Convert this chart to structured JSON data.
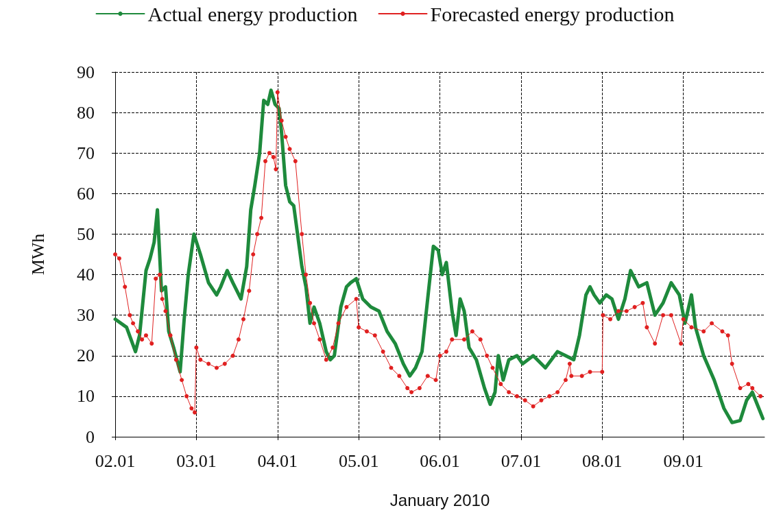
{
  "chart_data": {
    "type": "line",
    "xlabel": "January 2010",
    "ylabel": "MWh",
    "xlim": [
      "2010-01-02",
      "2010-01-10"
    ],
    "xticks": [
      {
        "value": "2010-01-02",
        "label": "02.01"
      },
      {
        "value": "2010-01-03",
        "label": "03.01"
      },
      {
        "value": "2010-01-04",
        "label": "04.01"
      },
      {
        "value": "2010-01-05",
        "label": "05.01"
      },
      {
        "value": "2010-01-06",
        "label": "06.01"
      },
      {
        "value": "2010-01-07",
        "label": "07.01"
      },
      {
        "value": "2010-01-08",
        "label": "08.01"
      },
      {
        "value": "2010-01-09",
        "label": "09.01"
      }
    ],
    "ylim": [
      0,
      90
    ],
    "yticks": [
      0,
      10,
      20,
      30,
      40,
      50,
      60,
      70,
      80,
      90
    ],
    "grid": true,
    "legend": "top",
    "line_style": "solid",
    "series": [
      {
        "name": "Actual energy production",
        "color": "#1e8a3c",
        "marker": "none",
        "x": [
          "2010-01-02T00:00",
          "2010-01-02T03:22",
          "2010-01-02T06:00",
          "2010-01-02T07:12",
          "2010-01-02T09:07",
          "2010-01-02T10:19",
          "2010-01-02T11:31",
          "2010-01-02T12:29",
          "2010-01-02T13:41",
          "2010-01-02T14:53",
          "2010-01-02T15:50",
          "2010-01-02T17:17",
          "2010-01-02T19:12",
          "2010-01-02T20:24",
          "2010-01-02T21:36",
          "2010-01-02T23:17",
          "2010-01-03T01:12",
          "2010-01-03T03:36",
          "2010-01-03T06:00",
          "2010-01-03T07:12",
          "2010-01-03T09:07",
          "2010-01-03T10:48",
          "2010-01-03T13:12",
          "2010-01-03T14:53",
          "2010-01-03T16:05",
          "2010-01-03T17:17",
          "2010-01-03T18:43",
          "2010-01-03T19:55",
          "2010-01-03T21:07",
          "2010-01-03T22:05",
          "2010-01-03T23:17",
          "2010-01-04T00:29",
          "2010-01-04T01:12",
          "2010-01-04T02:24",
          "2010-01-04T03:36",
          "2010-01-04T04:48",
          "2010-01-04T07:12",
          "2010-01-04T08:24",
          "2010-01-04T09:36",
          "2010-01-04T10:48",
          "2010-01-04T12:29",
          "2010-01-04T14:24",
          "2010-01-04T15:36",
          "2010-01-04T16:48",
          "2010-01-04T18:43",
          "2010-01-04T20:24",
          "2010-01-04T21:36",
          "2010-01-04T23:17",
          "2010-01-05T01:12",
          "2010-01-05T03:36",
          "2010-01-05T06:00",
          "2010-01-05T08:24",
          "2010-01-05T10:48",
          "2010-01-05T13:12",
          "2010-01-05T15:07",
          "2010-01-05T16:48",
          "2010-01-05T18:43",
          "2010-01-05T20:24",
          "2010-01-05T22:05",
          "2010-01-05T23:31",
          "2010-01-06T00:43",
          "2010-01-06T01:55",
          "2010-01-06T03:36",
          "2010-01-06T04:48",
          "2010-01-06T06:00",
          "2010-01-06T07:12",
          "2010-01-06T08:38",
          "2010-01-06T10:48",
          "2010-01-06T13:12",
          "2010-01-06T14:53",
          "2010-01-06T16:19",
          "2010-01-06T17:17",
          "2010-01-06T18:43",
          "2010-01-06T20:24",
          "2010-01-06T22:48",
          "2010-01-07T00:29",
          "2010-01-07T03:36",
          "2010-01-07T07:12",
          "2010-01-07T10:48",
          "2010-01-07T13:12",
          "2010-01-07T15:36",
          "2010-01-07T17:17",
          "2010-01-07T19:12",
          "2010-01-07T20:24",
          "2010-01-07T21:36",
          "2010-01-07T23:17",
          "2010-01-08T01:12",
          "2010-01-08T02:53",
          "2010-01-08T04:48",
          "2010-01-08T06:43",
          "2010-01-08T08:24",
          "2010-01-08T10:48",
          "2010-01-08T13:12",
          "2010-01-08T15:36",
          "2010-01-08T18:00",
          "2010-01-08T20:24",
          "2010-01-08T22:48",
          "2010-01-09T00:29",
          "2010-01-09T02:24",
          "2010-01-09T03:36",
          "2010-01-09T06:00",
          "2010-01-09T09:07",
          "2010-01-09T12:00",
          "2010-01-09T14:24",
          "2010-01-09T16:48",
          "2010-01-09T18:43",
          "2010-01-09T20:24",
          "2010-01-09T22:48",
          "2010-01-09T23:31"
        ],
        "values": [
          29,
          27,
          21,
          25,
          41,
          44,
          48,
          56,
          36,
          37,
          26,
          22,
          16,
          29,
          40,
          50,
          45,
          38,
          35,
          37,
          41,
          38,
          34,
          42,
          56,
          62,
          70,
          83,
          82,
          85.5,
          82,
          81,
          75,
          62,
          58,
          57,
          42,
          37,
          28,
          32,
          28,
          21,
          19,
          20,
          32,
          37,
          38,
          39,
          34,
          32,
          31,
          26,
          23,
          18,
          15,
          17,
          21,
          34,
          47,
          46,
          40,
          43,
          31,
          25,
          34,
          31,
          22,
          19,
          12,
          8,
          11,
          20,
          14,
          19,
          20,
          18,
          20,
          17,
          21,
          20,
          19,
          25,
          35,
          37,
          35,
          33,
          35,
          34,
          29,
          34,
          41,
          37,
          38,
          30,
          33,
          38,
          35,
          28,
          35,
          27,
          20,
          14,
          7,
          3.5,
          4,
          9,
          11,
          6,
          4.5
        ]
      },
      {
        "name": "Forecasted energy production",
        "color": "#e02020",
        "marker": "circle",
        "x": [
          "2010-01-02T00:00",
          "2010-01-02T01:12",
          "2010-01-02T02:53",
          "2010-01-02T04:19",
          "2010-01-02T05:17",
          "2010-01-02T06:43",
          "2010-01-02T07:55",
          "2010-01-02T09:07",
          "2010-01-02T10:48",
          "2010-01-02T12:00",
          "2010-01-02T13:12",
          "2010-01-02T13:55",
          "2010-01-02T14:53",
          "2010-01-02T16:19",
          "2010-01-02T18:00",
          "2010-01-02T19:41",
          "2010-01-02T21:07",
          "2010-01-02T22:34",
          "2010-01-02T23:31",
          "2010-01-03T00:00",
          "2010-01-03T01:12",
          "2010-01-03T03:36",
          "2010-01-03T06:00",
          "2010-01-03T08:24",
          "2010-01-03T10:48",
          "2010-01-03T12:29",
          "2010-01-03T13:55",
          "2010-01-03T15:36",
          "2010-01-03T16:48",
          "2010-01-03T18:00",
          "2010-01-03T19:12",
          "2010-01-03T20:24",
          "2010-01-03T21:36",
          "2010-01-03T22:48",
          "2010-01-03T23:31",
          "2010-01-04T00:00",
          "2010-01-04T01:12",
          "2010-01-04T02:24",
          "2010-01-04T03:36",
          "2010-01-04T05:17",
          "2010-01-04T07:12",
          "2010-01-04T08:24",
          "2010-01-04T09:36",
          "2010-01-04T10:48",
          "2010-01-04T12:29",
          "2010-01-04T14:24",
          "2010-01-04T16:19",
          "2010-01-04T18:00",
          "2010-01-04T20:24",
          "2010-01-04T23:17",
          "2010-01-05T00:00",
          "2010-01-05T02:24",
          "2010-01-05T04:48",
          "2010-01-05T07:12",
          "2010-01-05T09:36",
          "2010-01-05T12:00",
          "2010-01-05T14:24",
          "2010-01-05T15:36",
          "2010-01-05T18:00",
          "2010-01-05T20:24",
          "2010-01-05T22:48",
          "2010-01-06T00:00",
          "2010-01-06T01:55",
          "2010-01-06T03:36",
          "2010-01-06T07:12",
          "2010-01-06T09:36",
          "2010-01-06T12:00",
          "2010-01-06T13:55",
          "2010-01-06T15:36",
          "2010-01-06T18:00",
          "2010-01-06T20:24",
          "2010-01-06T22:48",
          "2010-01-07T01:12",
          "2010-01-07T03:36",
          "2010-01-07T06:00",
          "2010-01-07T08:24",
          "2010-01-07T10:48",
          "2010-01-07T13:12",
          "2010-01-07T14:24",
          "2010-01-07T14:53",
          "2010-01-07T18:00",
          "2010-01-07T20:24",
          "2010-01-08T00:00",
          "2010-01-08T00:14",
          "2010-01-08T02:24",
          "2010-01-08T04:48",
          "2010-01-08T07:12",
          "2010-01-08T09:36",
          "2010-01-08T12:00",
          "2010-01-08T13:12",
          "2010-01-08T15:36",
          "2010-01-08T18:00",
          "2010-01-08T20:24",
          "2010-01-08T23:17",
          "2010-01-09T00:00",
          "2010-01-09T02:24",
          "2010-01-09T06:00",
          "2010-01-09T08:24",
          "2010-01-09T11:31",
          "2010-01-09T13:12",
          "2010-01-09T14:24",
          "2010-01-09T16:48",
          "2010-01-09T19:12",
          "2010-01-09T20:24",
          "2010-01-09T22:48"
        ],
        "values": [
          45,
          44,
          37,
          30,
          28,
          26,
          24,
          25,
          23,
          39,
          40,
          34,
          31,
          25,
          19,
          14,
          10,
          7,
          6,
          22,
          19,
          18,
          17,
          18,
          20,
          24,
          29,
          36,
          45,
          50,
          54,
          68,
          70,
          69,
          66,
          85,
          78,
          74,
          71,
          68,
          50,
          40,
          33,
          28,
          24,
          19,
          22,
          28,
          32,
          34,
          27,
          26,
          25,
          21,
          17,
          15,
          12,
          11,
          12,
          15,
          14,
          20,
          21,
          24,
          24,
          26,
          24,
          20,
          17,
          13,
          11,
          10,
          9,
          7.5,
          9,
          10,
          11,
          14,
          18,
          15,
          15,
          16,
          16,
          30,
          29,
          31,
          31,
          32,
          33,
          27,
          23,
          30,
          30,
          23,
          29,
          27,
          26,
          28,
          26,
          25,
          18,
          12,
          13,
          12,
          10
        ]
      }
    ]
  }
}
